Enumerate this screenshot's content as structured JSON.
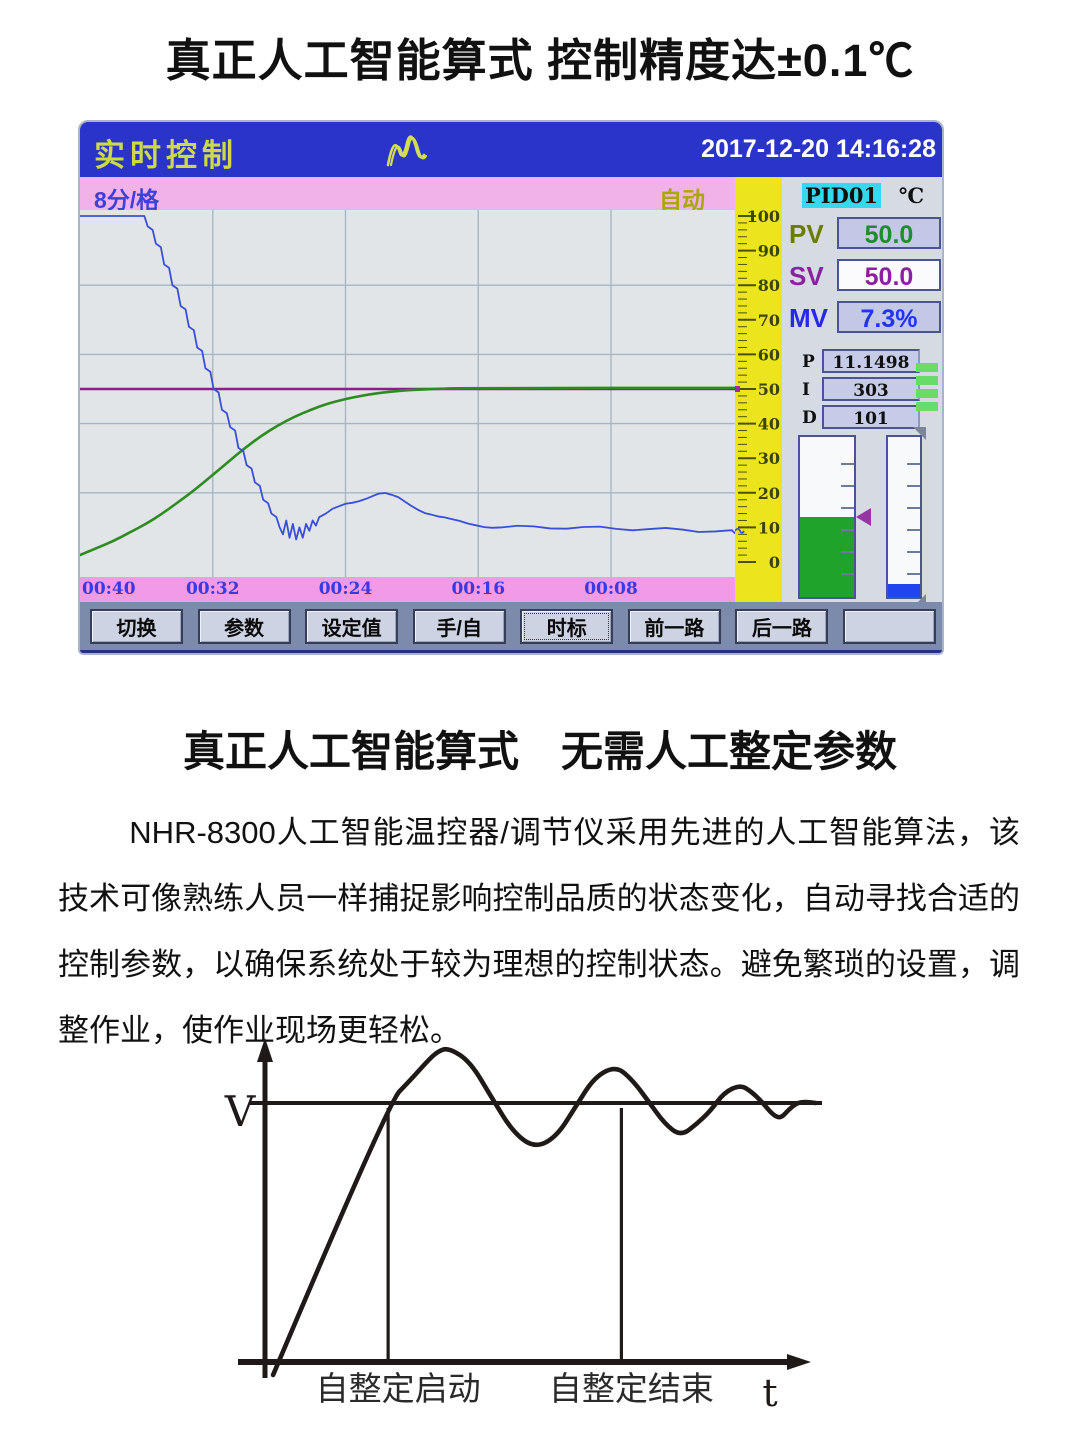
{
  "page": {
    "title1": "真正人工智能算式 控制精度达±0.1℃",
    "title2": "真正人工智能算式　无需人工整定参数",
    "paragraph": "NHR-8300人工智能温控器/调节仪采用先进的人工智能算法，该技术可像熟练人员一样捕捉影响控制品质的状态变化，自动寻找合适的控制参数，以确保系统处于较为理想的控制状态。避免繁琐的设置，调整作业，使作业现场更轻松。"
  },
  "device": {
    "header": {
      "title": "实时控制",
      "logo": "wave-logo",
      "datetime": "2017-12-20 14:16:28"
    },
    "trend": {
      "interval_label": "8分/格",
      "mode_label": "自动",
      "time_labels": [
        "00:40",
        "00:32",
        "00:24",
        "00:16",
        "00:08"
      ]
    },
    "scale": {
      "ticks": [
        100,
        90,
        80,
        70,
        60,
        50,
        40,
        30,
        20,
        10,
        0
      ]
    },
    "panel": {
      "channel": "PID01",
      "unit": "℃",
      "pv": {
        "label": "PV",
        "value": "50.0"
      },
      "sv": {
        "label": "SV",
        "value": "50.0"
      },
      "mv": {
        "label": "MV",
        "value": "7.3%"
      },
      "pid": [
        {
          "label": "P",
          "value": "11.1498"
        },
        {
          "label": "I",
          "value": "303"
        },
        {
          "label": "D",
          "value": "101"
        }
      ],
      "output_bars": 4,
      "gauges": {
        "left_fill_pct": 50,
        "right_fill_pct": 8
      }
    },
    "softkeys": [
      "切换",
      "参数",
      "设定值",
      "手/自",
      "时标",
      "前一路",
      "后一路",
      ""
    ],
    "focused_softkey": "时标"
  },
  "chart_data": [
    {
      "id": "trend",
      "type": "line",
      "x_tick_labels": [
        "00:40",
        "00:32",
        "00:24",
        "00:16",
        "00:08"
      ],
      "x_minutes_per_div": 8,
      "ylim": [
        0,
        100
      ],
      "y_ticks": [
        0,
        10,
        20,
        30,
        40,
        50,
        60,
        70,
        80,
        90,
        100
      ],
      "grid": true,
      "series": [
        {
          "name": "SV",
          "color": "#8a1f8a",
          "points": [
            [
              40.5,
              50
            ],
            [
              0.3,
              50
            ]
          ]
        },
        {
          "name": "PV",
          "color": "#2e8b22",
          "points": [
            [
              40.5,
              2
            ],
            [
              39.5,
              4
            ],
            [
              38.5,
              6
            ],
            [
              37.5,
              8.5
            ],
            [
              36.5,
              11
            ],
            [
              35.5,
              14
            ],
            [
              34.5,
              17.5
            ],
            [
              33.5,
              21
            ],
            [
              32.5,
              25
            ],
            [
              31.5,
              29
            ],
            [
              30.5,
              33
            ],
            [
              29.5,
              36.5
            ],
            [
              28.5,
              39.5
            ],
            [
              27.5,
              42
            ],
            [
              26.5,
              44
            ],
            [
              25.5,
              45.8
            ],
            [
              24.5,
              47
            ],
            [
              23.5,
              48
            ],
            [
              22.5,
              48.8
            ],
            [
              21.5,
              49.3
            ],
            [
              20.5,
              49.7
            ],
            [
              19.5,
              49.9
            ],
            [
              18.5,
              50.1
            ],
            [
              17,
              50.3
            ],
            [
              0.5,
              50.3
            ]
          ]
        },
        {
          "name": "MV",
          "color": "#3a4fd8",
          "points": [
            [
              41,
              100
            ],
            [
              36.6,
              100
            ],
            [
              36.4,
              97
            ],
            [
              36.1,
              96
            ],
            [
              35.9,
              92
            ],
            [
              35.6,
              91
            ],
            [
              35.4,
              86
            ],
            [
              35.1,
              85
            ],
            [
              34.9,
              80
            ],
            [
              34.6,
              79
            ],
            [
              34.4,
              74
            ],
            [
              34.1,
              73
            ],
            [
              33.9,
              68
            ],
            [
              33.6,
              67
            ],
            [
              33.4,
              62
            ],
            [
              33.1,
              61
            ],
            [
              32.9,
              56
            ],
            [
              32.6,
              55
            ],
            [
              32.4,
              50
            ],
            [
              32.1,
              49
            ],
            [
              31.9,
              44
            ],
            [
              31.6,
              43
            ],
            [
              31.4,
              39
            ],
            [
              31.1,
              38
            ],
            [
              30.9,
              33
            ],
            [
              30.6,
              32
            ],
            [
              30.4,
              28
            ],
            [
              30.1,
              27
            ],
            [
              29.9,
              23
            ],
            [
              29.6,
              22
            ],
            [
              29.4,
              18
            ],
            [
              29.1,
              17
            ],
            [
              28.9,
              14
            ],
            [
              28.6,
              13
            ],
            [
              28.4,
              10
            ],
            [
              28.2,
              8
            ],
            [
              28.0,
              12
            ],
            [
              27.8,
              7
            ],
            [
              27.6,
              11
            ],
            [
              27.4,
              6.5
            ],
            [
              27.2,
              10
            ],
            [
              27.0,
              7
            ],
            [
              26.8,
              11
            ],
            [
              26.6,
              9
            ],
            [
              26.4,
              12
            ],
            [
              26.2,
              10.5
            ],
            [
              26.0,
              13
            ],
            [
              25.6,
              14
            ],
            [
              25.2,
              15
            ],
            [
              24.8,
              16
            ],
            [
              24.4,
              17
            ],
            [
              24.0,
              17.5
            ],
            [
              23.6,
              18
            ],
            [
              23.2,
              18.5
            ],
            [
              22.8,
              19
            ],
            [
              22.4,
              19.5
            ],
            [
              22.0,
              19.5
            ],
            [
              21.6,
              19
            ],
            [
              21.2,
              18.5
            ],
            [
              20.8,
              17.5
            ],
            [
              20.4,
              16.5
            ],
            [
              20.0,
              15.5
            ],
            [
              19.6,
              14.5
            ],
            [
              19.2,
              13.8
            ],
            [
              18.8,
              13
            ],
            [
              18.4,
              12.5
            ],
            [
              18.0,
              12
            ],
            [
              17.5,
              11.5
            ],
            [
              17.0,
              11
            ],
            [
              16.5,
              10.8
            ],
            [
              16.0,
              10.5
            ],
            [
              15.5,
              10.3
            ],
            [
              15.0,
              10.2
            ],
            [
              14.0,
              10.1
            ],
            [
              13.0,
              10
            ],
            [
              12.0,
              10
            ],
            [
              11.0,
              10
            ],
            [
              10.0,
              9.9
            ],
            [
              9.0,
              9.8
            ],
            [
              8.0,
              9.7
            ],
            [
              7.0,
              9.6
            ],
            [
              6.0,
              9.5
            ],
            [
              5.0,
              9.4
            ],
            [
              4.0,
              9.3
            ],
            [
              3.0,
              9.1
            ],
            [
              2.0,
              9.0
            ],
            [
              1.0,
              8.8
            ],
            [
              0.5,
              8.6
            ]
          ]
        }
      ]
    },
    {
      "id": "autotune",
      "type": "line",
      "y_label": "V",
      "x_label": "t",
      "setpoint": 1.0,
      "annotations": [
        {
          "label": "自整定启动",
          "t": 2.28
        },
        {
          "label": "自整定结束",
          "t": 6.6
        }
      ],
      "curve": [
        [
          0.15,
          -0.05
        ],
        [
          2.28,
          1.0
        ],
        [
          2.7,
          1.09
        ],
        [
          3.0,
          1.16
        ],
        [
          3.2,
          1.2
        ],
        [
          3.4,
          1.213
        ],
        [
          3.8,
          1.16
        ],
        [
          4.2,
          1.02
        ],
        [
          4.6,
          0.885
        ],
        [
          5.0,
          0.826
        ],
        [
          5.4,
          0.87
        ],
        [
          5.75,
          0.985
        ],
        [
          6.1,
          1.1
        ],
        [
          6.5,
          1.143
        ],
        [
          6.8,
          1.09
        ],
        [
          7.1,
          1.007
        ],
        [
          7.4,
          0.92
        ],
        [
          7.7,
          0.872
        ],
        [
          8.0,
          0.92
        ],
        [
          8.25,
          0.97
        ],
        [
          8.5,
          1.04
        ],
        [
          8.8,
          1.07
        ],
        [
          9.0,
          1.045
        ],
        [
          9.2,
          1.005
        ],
        [
          9.4,
          0.955
        ],
        [
          9.55,
          0.94
        ],
        [
          9.7,
          0.975
        ],
        [
          9.85,
          1.0
        ],
        [
          10.0,
          1.005
        ],
        [
          10.2,
          1.0
        ]
      ]
    }
  ]
}
